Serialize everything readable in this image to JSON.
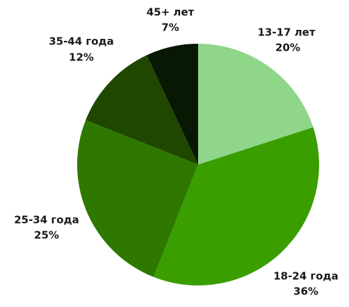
{
  "chart_data": {
    "type": "pie",
    "categories": [
      "13-17 лет",
      "18-24 года",
      "25-34 года",
      "35-44 года",
      "45+ лет"
    ],
    "values": [
      20,
      36,
      25,
      12,
      7
    ],
    "value_labels": [
      "20%",
      "36%",
      "25%",
      "12%",
      "7%"
    ],
    "colors": [
      "#8fd68a",
      "#3a9e00",
      "#2e7800",
      "#1f4700",
      "#091802"
    ]
  }
}
